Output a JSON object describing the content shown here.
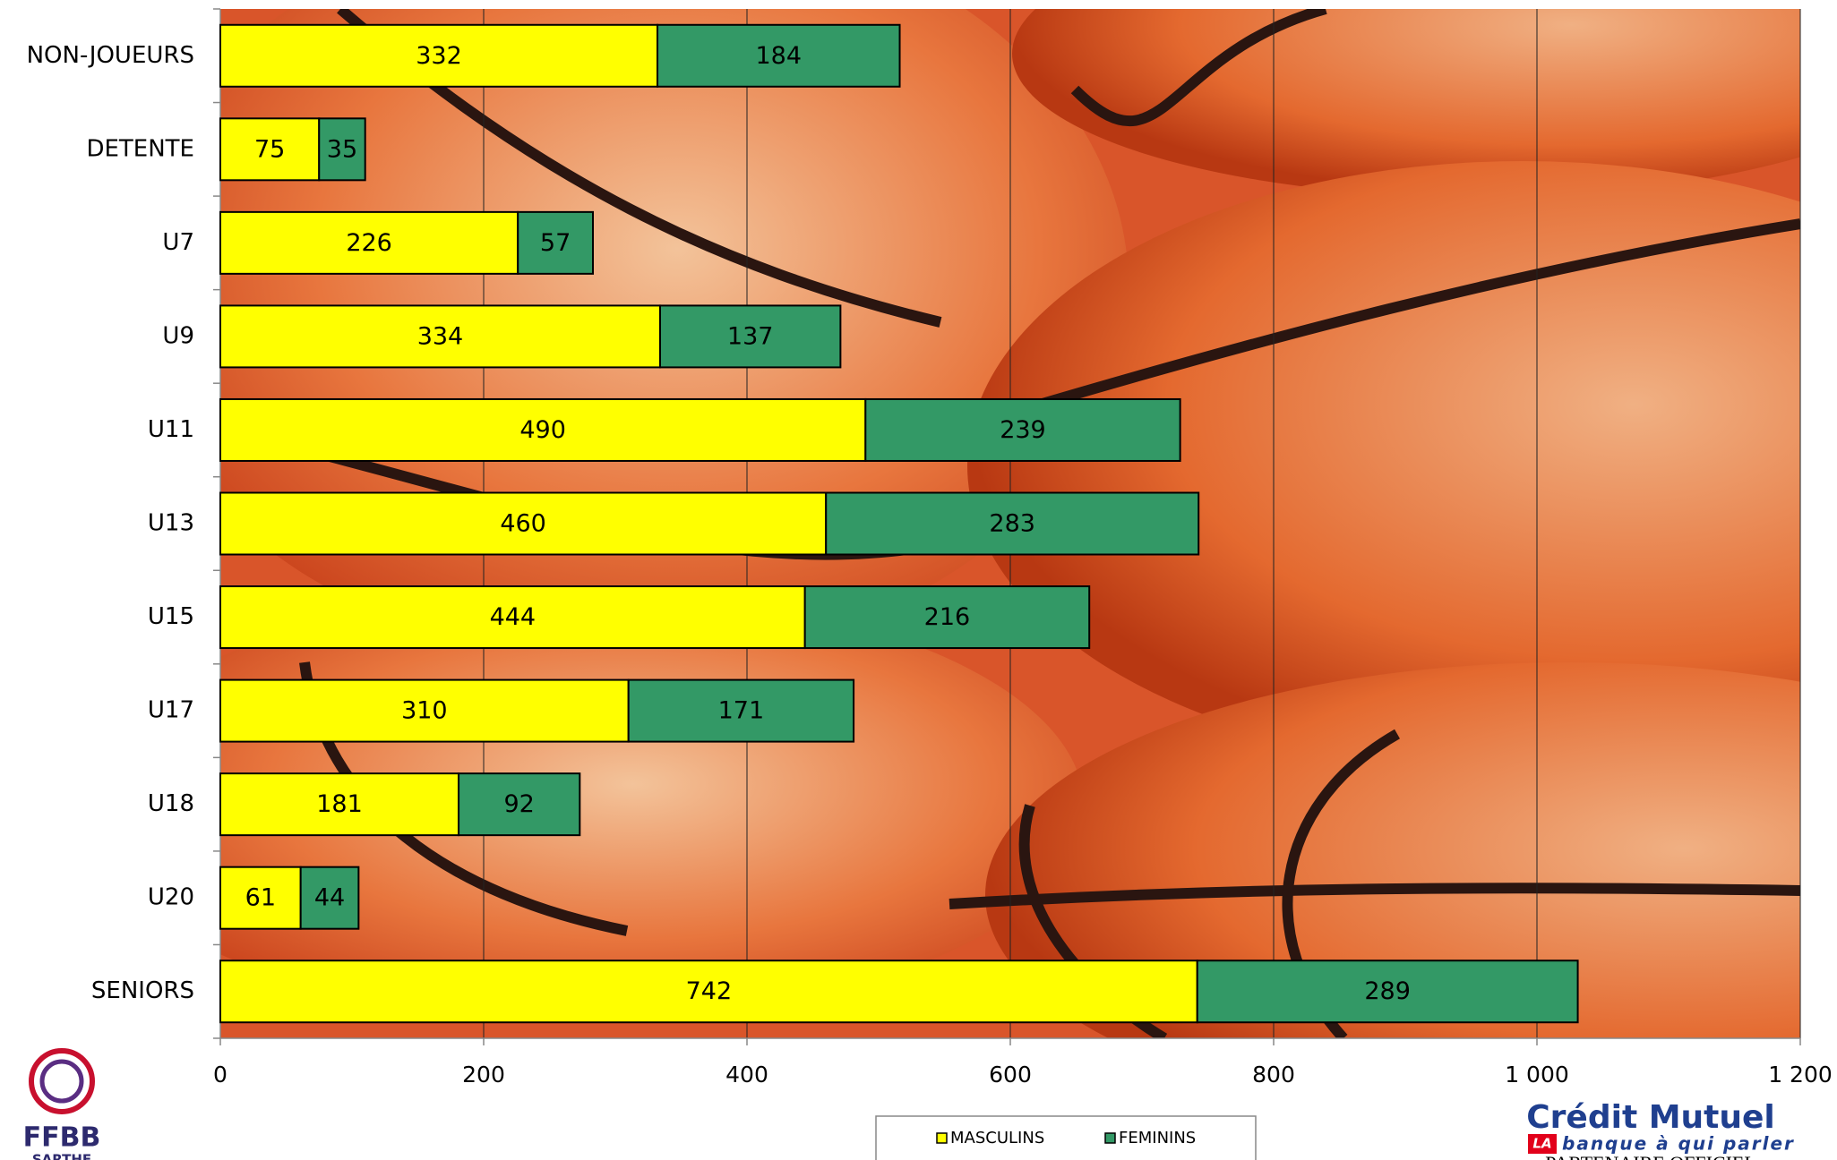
{
  "chart_data": {
    "type": "stacked-bar-horizontal",
    "categories": [
      "NON-JOUEURS",
      "DETENTE",
      "U7",
      "U9",
      "U11",
      "U13",
      "U15",
      "U17",
      "U18",
      "U20",
      "SENIORS"
    ],
    "series": [
      {
        "name": "MASCULINS",
        "color": "#ffff00",
        "values": [
          332,
          75,
          226,
          334,
          490,
          460,
          444,
          310,
          181,
          61,
          742
        ]
      },
      {
        "name": "FEMININS",
        "color": "#339966",
        "values": [
          184,
          35,
          57,
          137,
          239,
          283,
          216,
          171,
          92,
          44,
          289
        ]
      }
    ],
    "xlim": [
      0,
      1200
    ],
    "xticks": [
      0,
      200,
      400,
      600,
      800,
      {
        "value": 1000,
        "label": "1 000"
      },
      {
        "value": 1200,
        "label": "1 200"
      }
    ],
    "grid": true,
    "legend": "bottom"
  },
  "logos": {
    "left": {
      "name": "FFBB",
      "sub": "SARTHE"
    },
    "right": {
      "name": "Crédit Mutuel",
      "badge": "LA",
      "slogan": "banque à qui parler",
      "note": "PARTENAIRE OFFICIEL"
    }
  }
}
